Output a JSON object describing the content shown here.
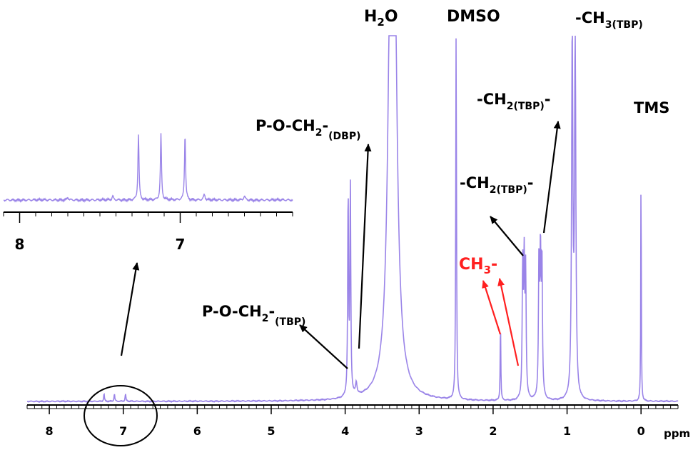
{
  "chart_data": {
    "type": "line",
    "xlabel": "ppm",
    "xlim": [
      8.3,
      -0.5
    ],
    "x_reversed": true,
    "grid": false,
    "colors": {
      "spectrum": "#9a84e8",
      "axis": "#000000",
      "arrow": "#000000",
      "highlight": "#ff2020"
    },
    "main_ticks": [
      {
        "value": 8,
        "label": "8"
      },
      {
        "value": 7,
        "label": "7"
      },
      {
        "value": 6,
        "label": "6"
      },
      {
        "value": 5,
        "label": "5"
      },
      {
        "value": 4,
        "label": "4"
      },
      {
        "value": 3,
        "label": "3"
      },
      {
        "value": 2,
        "label": "2"
      },
      {
        "value": 1,
        "label": "1"
      },
      {
        "value": 0,
        "label": "0"
      }
    ],
    "peaks": [
      {
        "ppm": 7.26,
        "height": 0.025,
        "width": 0.006
      },
      {
        "ppm": 7.12,
        "height": 0.025,
        "width": 0.006
      },
      {
        "ppm": 6.97,
        "height": 0.025,
        "width": 0.006
      },
      {
        "ppm": 3.96,
        "height": 0.66,
        "width": 0.007
      },
      {
        "ppm": 3.93,
        "height": 0.69,
        "width": 0.007
      },
      {
        "ppm": 3.85,
        "height": 0.04,
        "width": 0.012
      },
      {
        "ppm": 3.38,
        "height": 1.2,
        "width": 0.045
      },
      {
        "ppm": 3.34,
        "height": 1.2,
        "width": 0.045
      },
      {
        "ppm": 2.5,
        "height": 1.2,
        "width": 0.006
      },
      {
        "ppm": 1.9,
        "height": 0.26,
        "width": 0.005
      },
      {
        "ppm": 1.6,
        "height": 0.42,
        "width": 0.008
      },
      {
        "ppm": 1.58,
        "height": 0.42,
        "width": 0.008
      },
      {
        "ppm": 1.56,
        "height": 0.4,
        "width": 0.008
      },
      {
        "ppm": 1.38,
        "height": 0.44,
        "width": 0.008
      },
      {
        "ppm": 1.36,
        "height": 0.45,
        "width": 0.008
      },
      {
        "ppm": 1.34,
        "height": 0.44,
        "width": 0.008
      },
      {
        "ppm": 0.93,
        "height": 1.2,
        "width": 0.01
      },
      {
        "ppm": 0.89,
        "height": 1.2,
        "width": 0.01
      },
      {
        "ppm": 0.0,
        "height": 0.8,
        "width": 0.004
      }
    ],
    "inset": {
      "xlim": [
        8.1,
        6.3
      ],
      "ticks": [
        {
          "value": 8,
          "label": "8"
        },
        {
          "value": 7,
          "label": "7"
        }
      ],
      "peaks": [
        {
          "ppm": 7.42,
          "height": 0.06,
          "width": 0.005
        },
        {
          "ppm": 7.26,
          "height": 1.0,
          "width": 0.004
        },
        {
          "ppm": 7.12,
          "height": 1.0,
          "width": 0.004
        },
        {
          "ppm": 6.97,
          "height": 1.0,
          "width": 0.004
        },
        {
          "ppm": 6.85,
          "height": 0.08,
          "width": 0.006
        },
        {
          "ppm": 6.6,
          "height": 0.06,
          "width": 0.006
        },
        {
          "ppm": 7.7,
          "height": 0.04,
          "width": 0.006
        }
      ]
    },
    "annotations": [
      {
        "id": "h2o",
        "main": "H",
        "sub": "2",
        "tail": "O",
        "color": "#000000",
        "ppm": 3.36
      },
      {
        "id": "dmso",
        "main": "DMSO",
        "sub": "",
        "tail": "",
        "color": "#000000",
        "ppm": 2.5
      },
      {
        "id": "ch3-tbp",
        "main": "-CH",
        "sub": "3(TBP)",
        "tail": "",
        "color": "#000000",
        "ppm": 0.91
      },
      {
        "id": "tms",
        "main": "TMS",
        "sub": "",
        "tail": "",
        "color": "#000000",
        "ppm": 0.0
      },
      {
        "id": "ch2-tbp-upper",
        "main": "-CH",
        "sub": "2(TBP)",
        "tail": "-",
        "color": "#000000",
        "ppm": 1.36
      },
      {
        "id": "ch2-tbp-lower",
        "main": "-CH",
        "sub": "2(TBP)",
        "tail": "-",
        "color": "#000000",
        "ppm": 1.58
      },
      {
        "id": "poch2-dbp",
        "main": "P-O-CH",
        "sub": "2",
        "tail": "-(DBP)",
        "color": "#000000",
        "ppm": 3.85
      },
      {
        "id": "poch2-tbp",
        "main": "P-O-CH",
        "sub": "2",
        "tail": "-(TBP)",
        "color": "#000000",
        "ppm": 3.94
      },
      {
        "id": "ch3-red",
        "main": "CH",
        "sub": "3",
        "tail": "-",
        "color": "#ff2020",
        "ppm": 1.9
      }
    ]
  }
}
